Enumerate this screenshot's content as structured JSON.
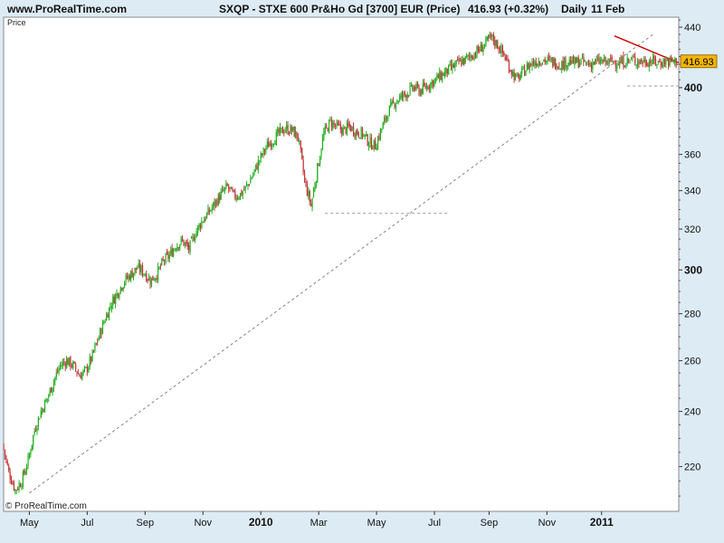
{
  "header": {
    "site": "www.ProRealTime.com",
    "instrument": "SXQP - STXE 600 Pr&Ho Gd [3700] EUR (Price)",
    "quote": "416.93 (+0.32%)",
    "period": "Daily",
    "date": "11 Feb"
  },
  "chart_data": {
    "type": "candlestick",
    "panel_label": "Price",
    "copyright": "© ProRealTime.com",
    "last_price_label": "416.93",
    "ylim": [
      205,
      447
    ],
    "y_ticks": [
      220,
      240,
      260,
      280,
      300,
      320,
      340,
      360,
      400,
      440
    ],
    "y_ticks_bold": [
      300,
      400
    ],
    "x_ticks": [
      {
        "label": "May",
        "week": 4,
        "bold": false
      },
      {
        "label": "Jul",
        "week": 13,
        "bold": false
      },
      {
        "label": "Sep",
        "week": 22,
        "bold": false
      },
      {
        "label": "Nov",
        "week": 31,
        "bold": false
      },
      {
        "label": "2010",
        "week": 40,
        "bold": true
      },
      {
        "label": "Mar",
        "week": 49,
        "bold": false
      },
      {
        "label": "May",
        "week": 58,
        "bold": false
      },
      {
        "label": "Jul",
        "week": 67,
        "bold": false
      },
      {
        "label": "Sep",
        "week": 75.5,
        "bold": false
      },
      {
        "label": "Nov",
        "week": 84.5,
        "bold": false
      },
      {
        "label": "2011",
        "week": 93,
        "bold": true
      },
      {
        "label": "2011",
        "week": 93,
        "bold": true
      }
    ],
    "x_ticks_note": "",
    "week_range": [
      0,
      105
    ],
    "candles_per_week": 5,
    "weekly_close": [
      228,
      218,
      212,
      215,
      222,
      233,
      240,
      245,
      252,
      258,
      260,
      258,
      254,
      256,
      262,
      270,
      278,
      285,
      290,
      295,
      298,
      301,
      299,
      295,
      298,
      304,
      307,
      312,
      314,
      310,
      318,
      324,
      328,
      333,
      338,
      342,
      337,
      338,
      342,
      349,
      357,
      364,
      368,
      372,
      375,
      374,
      370,
      345,
      332,
      352,
      372,
      379,
      376,
      374,
      376,
      373,
      372,
      367,
      365,
      375,
      385,
      391,
      394,
      397,
      400,
      398,
      401,
      404,
      407,
      410,
      413,
      416,
      418,
      421,
      424,
      428,
      433,
      428,
      421,
      412,
      405,
      410,
      415,
      417,
      418,
      417,
      416,
      415,
      417,
      416,
      417,
      415,
      416,
      417,
      416,
      417,
      416,
      417,
      418,
      417,
      416.93,
      417,
      416,
      416.93,
      416.93,
      416.93
    ],
    "trendlines": [
      {
        "style": "dashed-grey",
        "from": {
          "week": 4,
          "price": 211
        },
        "to": {
          "week": 101,
          "price": 435
        }
      },
      {
        "style": "solid-red",
        "from": {
          "week": 95,
          "price": 434
        },
        "to": {
          "week": 105,
          "price": 416
        }
      }
    ],
    "support_lines": [
      {
        "style": "dashed-grey",
        "price": 328,
        "from_week": 50,
        "to_week": 69
      },
      {
        "style": "dashed-grey",
        "price": 401,
        "from_week": 97,
        "to_week": 105
      }
    ],
    "colors": {
      "background": "#DDEBF5",
      "plot": "#FFFFFF",
      "up": "#22B022",
      "down": "#C03838",
      "last_price_box": "#F4B400",
      "trend_red": "#CC0000"
    }
  }
}
